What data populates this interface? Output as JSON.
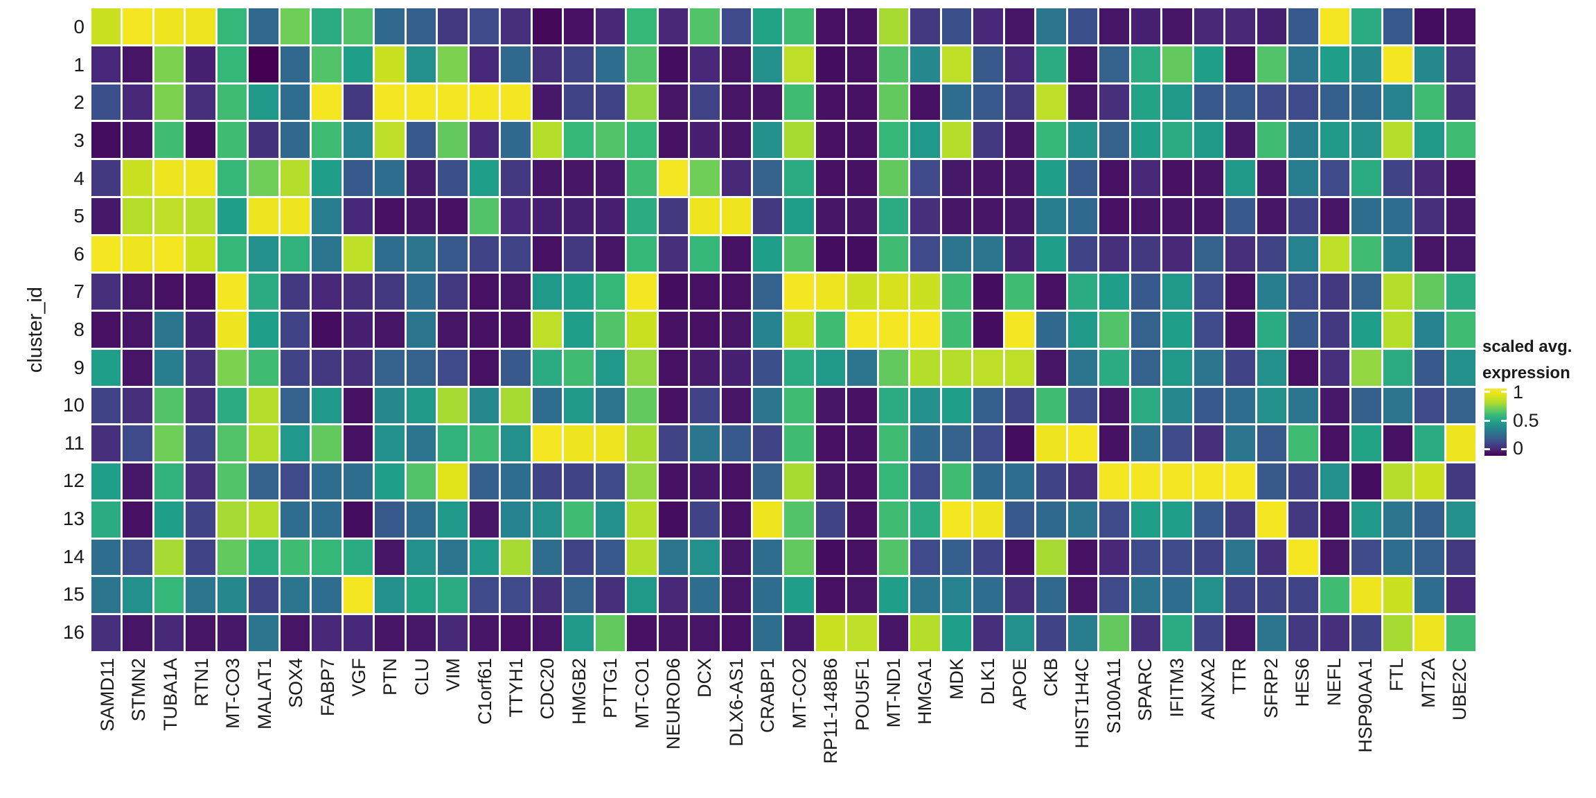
{
  "axes": {
    "y_title": "cluster_id"
  },
  "legend": {
    "title_line1": "scaled avg.",
    "title_line2": "expression",
    "ticks": [
      "1",
      "0.5",
      "0"
    ]
  },
  "colors": {
    "background": "#ffffff",
    "cell_gap": "#ffffff",
    "text": "#1a1a1a",
    "viridis_stops": [
      [
        0.0,
        "#440154"
      ],
      [
        0.1,
        "#482878"
      ],
      [
        0.2,
        "#3e4a89"
      ],
      [
        0.3,
        "#31688e"
      ],
      [
        0.4,
        "#26828e"
      ],
      [
        0.5,
        "#1f9e89"
      ],
      [
        0.6,
        "#35b779"
      ],
      [
        0.7,
        "#6ece58"
      ],
      [
        0.8,
        "#b5de2b"
      ],
      [
        0.9,
        "#dfe318"
      ],
      [
        1.0,
        "#fde725"
      ]
    ]
  },
  "chart_data": {
    "type": "heatmap",
    "title": "",
    "xlabel": "",
    "ylabel": "cluster_id",
    "legend_title": "scaled avg. expression",
    "value_range": [
      0,
      1
    ],
    "legend_tick_values": [
      1,
      0.5,
      0
    ],
    "colormap": "viridis",
    "grid": "white gaps between cells",
    "x_categories": [
      "SAMD11",
      "STMN2",
      "TUBA1A",
      "RTN1",
      "MT-CO3",
      "MALAT1",
      "SOX4",
      "FABP7",
      "VGF",
      "PTN",
      "CLU",
      "VIM",
      "C1orf61",
      "TTYH1",
      "CDC20",
      "HMGB2",
      "PTTG1",
      "MT-CO1",
      "NEUROD6",
      "DCX",
      "DLX6-AS1",
      "CRABP1",
      "MT-CO2",
      "RP11-148B6",
      "POU5F1",
      "MT-ND1",
      "HMGA1",
      "MDK",
      "DLK1",
      "APOE",
      "CKB",
      "HIST1H4C",
      "S100A11",
      "SPARC",
      "IFITM3",
      "ANXA2",
      "TTR",
      "SFRP2",
      "HES6",
      "NEFL",
      "HSP90AA1",
      "FTL",
      "MT2A",
      "UBE2C"
    ],
    "y_categories": [
      "0",
      "1",
      "2",
      "3",
      "4",
      "5",
      "6",
      "7",
      "8",
      "9",
      "10",
      "11",
      "12",
      "13",
      "14",
      "15",
      "16"
    ],
    "values": [
      [
        0.85,
        0.97,
        0.95,
        0.95,
        0.6,
        0.3,
        0.7,
        0.55,
        0.65,
        0.3,
        0.27,
        0.15,
        0.2,
        0.12,
        0.02,
        0.04,
        0.1,
        0.6,
        0.1,
        0.65,
        0.2,
        0.52,
        0.62,
        0.04,
        0.04,
        0.78,
        0.15,
        0.22,
        0.1,
        0.05,
        0.35,
        0.22,
        0.05,
        0.08,
        0.05,
        0.1,
        0.1,
        0.08,
        0.25,
        0.97,
        0.55,
        0.25,
        0.03,
        0.04
      ],
      [
        0.1,
        0.05,
        0.72,
        0.08,
        0.6,
        0.0,
        0.3,
        0.65,
        0.5,
        0.85,
        0.45,
        0.72,
        0.1,
        0.3,
        0.12,
        0.18,
        0.32,
        0.65,
        0.03,
        0.1,
        0.05,
        0.45,
        0.82,
        0.03,
        0.04,
        0.65,
        0.42,
        0.82,
        0.25,
        0.1,
        0.55,
        0.04,
        0.28,
        0.55,
        0.68,
        0.5,
        0.04,
        0.65,
        0.35,
        0.5,
        0.42,
        0.97,
        0.42,
        0.12
      ],
      [
        0.22,
        0.1,
        0.72,
        0.12,
        0.62,
        0.48,
        0.32,
        0.97,
        0.15,
        0.97,
        0.97,
        0.97,
        0.97,
        0.97,
        0.06,
        0.18,
        0.18,
        0.75,
        0.05,
        0.18,
        0.05,
        0.05,
        0.62,
        0.04,
        0.04,
        0.68,
        0.04,
        0.32,
        0.25,
        0.15,
        0.82,
        0.05,
        0.12,
        0.52,
        0.48,
        0.25,
        0.25,
        0.2,
        0.2,
        0.27,
        0.32,
        0.4,
        0.62,
        0.12
      ],
      [
        0.03,
        0.04,
        0.62,
        0.03,
        0.62,
        0.13,
        0.3,
        0.62,
        0.4,
        0.82,
        0.25,
        0.68,
        0.1,
        0.3,
        0.8,
        0.6,
        0.65,
        0.6,
        0.04,
        0.08,
        0.05,
        0.45,
        0.78,
        0.04,
        0.04,
        0.6,
        0.48,
        0.8,
        0.15,
        0.05,
        0.6,
        0.45,
        0.28,
        0.5,
        0.55,
        0.48,
        0.06,
        0.62,
        0.38,
        0.48,
        0.45,
        0.8,
        0.48,
        0.62
      ],
      [
        0.15,
        0.85,
        0.95,
        0.95,
        0.6,
        0.7,
        0.8,
        0.5,
        0.25,
        0.32,
        0.07,
        0.22,
        0.5,
        0.15,
        0.05,
        0.05,
        0.06,
        0.62,
        0.97,
        0.7,
        0.1,
        0.28,
        0.55,
        0.04,
        0.04,
        0.68,
        0.2,
        0.06,
        0.05,
        0.05,
        0.5,
        0.25,
        0.04,
        0.1,
        0.04,
        0.05,
        0.48,
        0.05,
        0.38,
        0.2,
        0.55,
        0.18,
        0.1,
        0.04
      ],
      [
        0.06,
        0.8,
        0.82,
        0.8,
        0.5,
        0.95,
        0.95,
        0.38,
        0.1,
        0.04,
        0.05,
        0.04,
        0.65,
        0.1,
        0.08,
        0.08,
        0.08,
        0.55,
        0.15,
        0.95,
        0.95,
        0.15,
        0.5,
        0.05,
        0.05,
        0.55,
        0.12,
        0.05,
        0.05,
        0.06,
        0.38,
        0.3,
        0.04,
        0.05,
        0.05,
        0.05,
        0.25,
        0.05,
        0.18,
        0.05,
        0.32,
        0.32,
        0.12,
        0.06
      ],
      [
        0.97,
        0.95,
        0.97,
        0.85,
        0.6,
        0.45,
        0.58,
        0.35,
        0.82,
        0.32,
        0.35,
        0.25,
        0.18,
        0.18,
        0.04,
        0.15,
        0.05,
        0.6,
        0.12,
        0.6,
        0.04,
        0.5,
        0.65,
        0.03,
        0.03,
        0.62,
        0.2,
        0.35,
        0.35,
        0.08,
        0.5,
        0.18,
        0.12,
        0.15,
        0.1,
        0.28,
        0.12,
        0.18,
        0.4,
        0.82,
        0.62,
        0.38,
        0.05,
        0.06
      ],
      [
        0.12,
        0.05,
        0.04,
        0.04,
        0.97,
        0.55,
        0.15,
        0.1,
        0.12,
        0.15,
        0.32,
        0.15,
        0.04,
        0.05,
        0.48,
        0.5,
        0.6,
        0.97,
        0.03,
        0.04,
        0.04,
        0.28,
        0.97,
        0.95,
        0.85,
        0.88,
        0.85,
        0.62,
        0.03,
        0.62,
        0.04,
        0.55,
        0.5,
        0.25,
        0.48,
        0.2,
        0.04,
        0.38,
        0.2,
        0.15,
        0.28,
        0.8,
        0.68,
        0.55
      ],
      [
        0.04,
        0.05,
        0.35,
        0.08,
        0.95,
        0.5,
        0.18,
        0.03,
        0.08,
        0.05,
        0.35,
        0.05,
        0.04,
        0.04,
        0.82,
        0.5,
        0.65,
        0.85,
        0.04,
        0.04,
        0.05,
        0.4,
        0.85,
        0.62,
        0.97,
        0.97,
        0.97,
        0.62,
        0.03,
        0.97,
        0.3,
        0.48,
        0.65,
        0.28,
        0.5,
        0.2,
        0.04,
        0.55,
        0.25,
        0.15,
        0.5,
        0.8,
        0.4,
        0.62
      ],
      [
        0.5,
        0.05,
        0.38,
        0.12,
        0.72,
        0.62,
        0.18,
        0.15,
        0.12,
        0.28,
        0.28,
        0.2,
        0.04,
        0.25,
        0.55,
        0.62,
        0.48,
        0.75,
        0.04,
        0.07,
        0.08,
        0.22,
        0.55,
        0.48,
        0.35,
        0.68,
        0.8,
        0.8,
        0.82,
        0.82,
        0.05,
        0.35,
        0.55,
        0.28,
        0.48,
        0.35,
        0.18,
        0.45,
        0.04,
        0.12,
        0.75,
        0.55,
        0.25,
        0.45
      ],
      [
        0.18,
        0.12,
        0.65,
        0.12,
        0.55,
        0.8,
        0.28,
        0.48,
        0.04,
        0.42,
        0.48,
        0.78,
        0.42,
        0.78,
        0.32,
        0.48,
        0.35,
        0.68,
        0.04,
        0.18,
        0.05,
        0.35,
        0.62,
        0.05,
        0.04,
        0.55,
        0.45,
        0.5,
        0.27,
        0.18,
        0.62,
        0.2,
        0.05,
        0.55,
        0.42,
        0.25,
        0.32,
        0.45,
        0.35,
        0.06,
        0.27,
        0.35,
        0.2,
        0.28
      ],
      [
        0.12,
        0.2,
        0.7,
        0.18,
        0.65,
        0.8,
        0.48,
        0.68,
        0.04,
        0.45,
        0.35,
        0.58,
        0.62,
        0.45,
        0.97,
        0.95,
        0.95,
        0.78,
        0.18,
        0.35,
        0.25,
        0.18,
        0.62,
        0.04,
        0.04,
        0.62,
        0.3,
        0.28,
        0.2,
        0.03,
        0.95,
        0.97,
        0.04,
        0.32,
        0.2,
        0.12,
        0.35,
        0.25,
        0.62,
        0.04,
        0.52,
        0.04,
        0.55,
        0.95
      ],
      [
        0.5,
        0.06,
        0.58,
        0.12,
        0.65,
        0.28,
        0.2,
        0.32,
        0.32,
        0.5,
        0.65,
        0.9,
        0.27,
        0.32,
        0.18,
        0.18,
        0.2,
        0.75,
        0.04,
        0.06,
        0.04,
        0.28,
        0.78,
        0.05,
        0.04,
        0.6,
        0.2,
        0.62,
        0.3,
        0.32,
        0.18,
        0.12,
        0.97,
        0.97,
        0.97,
        0.97,
        0.97,
        0.25,
        0.18,
        0.45,
        0.03,
        0.8,
        0.85,
        0.15
      ],
      [
        0.55,
        0.04,
        0.5,
        0.18,
        0.78,
        0.8,
        0.32,
        0.32,
        0.03,
        0.25,
        0.32,
        0.48,
        0.05,
        0.4,
        0.45,
        0.62,
        0.45,
        0.8,
        0.03,
        0.18,
        0.04,
        0.95,
        0.65,
        0.18,
        0.04,
        0.62,
        0.55,
        0.97,
        0.95,
        0.25,
        0.3,
        0.35,
        0.2,
        0.5,
        0.5,
        0.25,
        0.15,
        0.97,
        0.15,
        0.04,
        0.48,
        0.35,
        0.27,
        0.45
      ],
      [
        0.32,
        0.2,
        0.78,
        0.18,
        0.68,
        0.55,
        0.62,
        0.6,
        0.55,
        0.05,
        0.45,
        0.35,
        0.48,
        0.78,
        0.32,
        0.18,
        0.25,
        0.8,
        0.35,
        0.45,
        0.05,
        0.32,
        0.68,
        0.03,
        0.04,
        0.65,
        0.2,
        0.27,
        0.18,
        0.04,
        0.78,
        0.04,
        0.1,
        0.2,
        0.2,
        0.18,
        0.35,
        0.12,
        0.97,
        0.05,
        0.2,
        0.32,
        0.27,
        0.15
      ],
      [
        0.35,
        0.45,
        0.6,
        0.35,
        0.42,
        0.18,
        0.35,
        0.32,
        0.97,
        0.45,
        0.52,
        0.55,
        0.2,
        0.2,
        0.12,
        0.28,
        0.12,
        0.48,
        0.1,
        0.32,
        0.05,
        0.32,
        0.5,
        0.04,
        0.05,
        0.5,
        0.35,
        0.4,
        0.32,
        0.12,
        0.3,
        0.05,
        0.2,
        0.35,
        0.32,
        0.45,
        0.18,
        0.18,
        0.18,
        0.62,
        0.95,
        0.85,
        0.32,
        0.1
      ],
      [
        0.12,
        0.05,
        0.1,
        0.05,
        0.06,
        0.35,
        0.05,
        0.1,
        0.1,
        0.05,
        0.06,
        0.1,
        0.05,
        0.04,
        0.05,
        0.48,
        0.68,
        0.04,
        0.05,
        0.05,
        0.04,
        0.32,
        0.06,
        0.85,
        0.82,
        0.05,
        0.8,
        0.5,
        0.12,
        0.45,
        0.18,
        0.38,
        0.68,
        0.12,
        0.55,
        0.18,
        0.05,
        0.35,
        0.15,
        0.12,
        0.18,
        0.78,
        0.95,
        0.62
      ]
    ]
  }
}
